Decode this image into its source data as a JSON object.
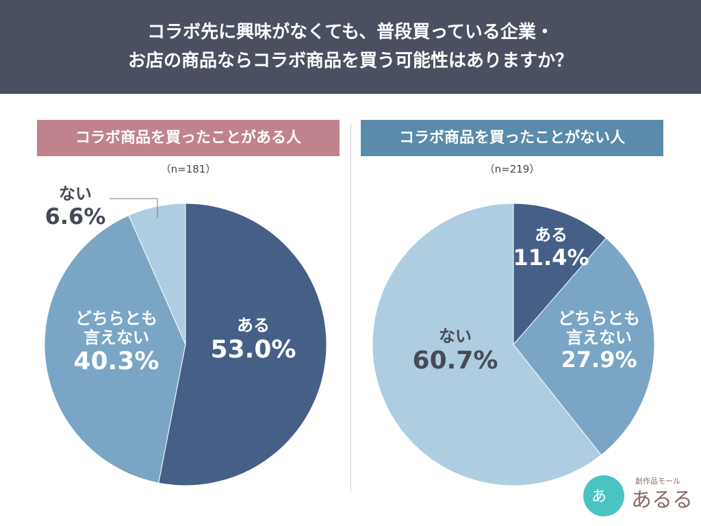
{
  "header": {
    "line1": "コラボ先に興味がなくても、普段買っている企業・",
    "line2": "お店の商品ならコラボ商品を買う可能性はありますか？"
  },
  "colors": {
    "aru": "#455f87",
    "dochira": "#7aa5c5",
    "nai": "#aecde0",
    "header_bg": "#4a5060",
    "left_label": "#c0838d",
    "right_label": "#5b8bab"
  },
  "logo": {
    "text": "創作品モール あるる"
  },
  "chart_data": [
    {
      "type": "pie",
      "title": "コラボ商品を買ったことがある人",
      "n_label": "（n=181）",
      "slices": [
        {
          "label": "ある",
          "value": 53.0,
          "value_label": "53.0%"
        },
        {
          "label": "どちらとも言えない",
          "label_line1": "どちらとも",
          "label_line2": "言えない",
          "value": 40.3,
          "value_label": "40.3%"
        },
        {
          "label": "ない",
          "value": 6.6,
          "value_label": "6.6%"
        }
      ]
    },
    {
      "type": "pie",
      "title": "コラボ商品を買ったことがない人",
      "n_label": "（n=219）",
      "slices": [
        {
          "label": "ある",
          "value": 11.4,
          "value_label": "11.4%"
        },
        {
          "label": "どちらとも言えない",
          "label_line1": "どちらとも",
          "label_line2": "言えない",
          "value": 27.9,
          "value_label": "27.9%"
        },
        {
          "label": "ない",
          "value": 60.7,
          "value_label": "60.7%"
        }
      ]
    }
  ]
}
